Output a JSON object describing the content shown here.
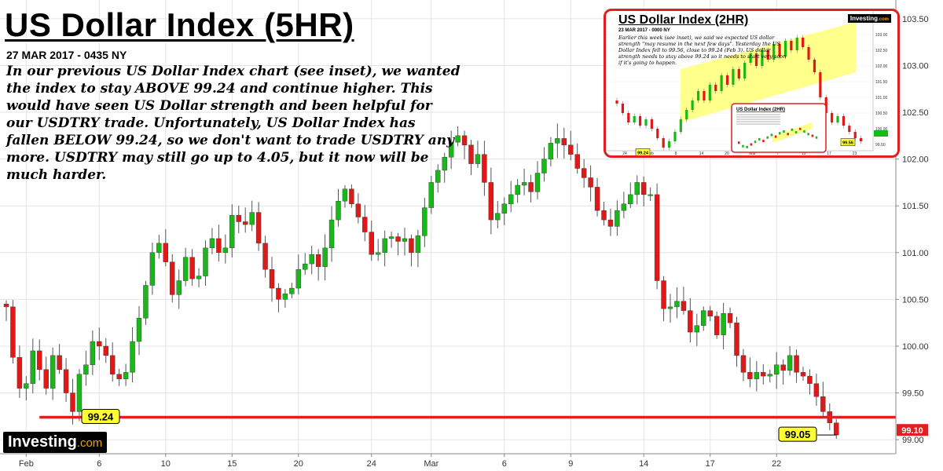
{
  "title": "US Dollar Index (5HR)",
  "date": "27 MAR 2017 - 0435 NY",
  "commentary": "In our previous US Dollar Index chart (see inset), we wanted the index to stay ABOVE 99.24 and continue higher. This would have seen US Dollar strength and been helpful for our USDTRY trade. Unfortunately, US Dollar Index has fallen BELOW 99.24, so we don't want to trade USDTRY any more. USDTRY may still go up to 4.05, but it now will be much harder.",
  "logo": {
    "brand": "Investing",
    "suffix": ".com"
  },
  "colors": {
    "up": "#18b818",
    "down": "#e01818",
    "wick": "#555555",
    "level_line": "#e02020",
    "label_fill": "#ffff33",
    "price_tag": "#e02020"
  },
  "chart_data": {
    "type": "candlestick",
    "title": "US Dollar Index (5HR)",
    "ylim": [
      98.85,
      103.65
    ],
    "y_ticks": [
      "99.00",
      "99.50",
      "100.00",
      "100.50",
      "101.00",
      "101.50",
      "102.00",
      "102.50",
      "103.00",
      "103.50"
    ],
    "x_tick_labels": [
      {
        "label": "Feb",
        "bar": 3
      },
      {
        "label": "6",
        "bar": 14
      },
      {
        "label": "10",
        "bar": 24
      },
      {
        "label": "15",
        "bar": 34
      },
      {
        "label": "20",
        "bar": 44
      },
      {
        "label": "24",
        "bar": 55
      },
      {
        "label": "Mar",
        "bar": 64
      },
      {
        "label": "6",
        "bar": 75
      },
      {
        "label": "9",
        "bar": 85
      },
      {
        "label": "14",
        "bar": 96
      },
      {
        "label": "17",
        "bar": 106
      },
      {
        "label": "22",
        "bar": 116
      }
    ],
    "closes": [
      100.42,
      99.88,
      99.55,
      99.6,
      99.95,
      99.75,
      99.55,
      99.9,
      99.75,
      99.5,
      99.3,
      99.7,
      99.8,
      100.05,
      100.0,
      99.9,
      99.7,
      99.65,
      99.72,
      100.05,
      100.3,
      100.65,
      101.0,
      101.1,
      100.9,
      100.55,
      100.7,
      100.95,
      100.72,
      100.75,
      101.05,
      101.15,
      101.0,
      101.05,
      101.4,
      101.33,
      101.3,
      101.43,
      101.1,
      100.82,
      100.62,
      100.5,
      100.56,
      100.62,
      100.82,
      100.88,
      100.98,
      100.85,
      101.05,
      101.35,
      101.55,
      101.68,
      101.52,
      101.38,
      101.22,
      100.98,
      101.0,
      101.15,
      101.17,
      101.12,
      101.15,
      101.0,
      101.18,
      101.48,
      101.75,
      101.88,
      102.02,
      102.18,
      102.25,
      102.15,
      101.95,
      102.05,
      101.75,
      101.35,
      101.42,
      101.52,
      101.62,
      101.72,
      101.75,
      101.65,
      101.85,
      102.0,
      102.17,
      102.22,
      102.15,
      102.05,
      101.9,
      101.8,
      101.7,
      101.45,
      101.35,
      101.28,
      101.45,
      101.52,
      101.62,
      101.75,
      101.62,
      101.62,
      100.7,
      100.4,
      100.42,
      100.48,
      100.38,
      100.15,
      100.22,
      100.38,
      100.32,
      100.12,
      100.35,
      100.25,
      99.9,
      99.72,
      99.65,
      99.72,
      99.68,
      99.7,
      99.8,
      99.74,
      99.9,
      99.72,
      99.68,
      99.6,
      99.46,
      99.3,
      99.18,
      99.05
    ],
    "levels": [
      {
        "value": 99.24,
        "label": "99.24",
        "from_bar": 5
      },
      {
        "value": 99.05,
        "label": "99.05"
      }
    ],
    "last_price": "99.10"
  },
  "inset": {
    "title": "US Dollar Index (2HR)",
    "date": "23 MAR 2017 - 0000 NY",
    "text": "Earlier this week (see inset), we said we expected US dollar strength \"may resume in the next few days\". Yesterday the US Dollar Index fell to 99.56, close to 99.24 (Feb 3). US dollar strength needs to stay above 99.24 so it needs to start very soon if it's going to happen.",
    "labels": {
      "low": "99.24",
      "recent": "99.56",
      "nested_title": "US Dollar Index (2HR)"
    },
    "logo_brand": "Investing",
    "logo_suffix": ".com",
    "chart_data": {
      "type": "candlestick",
      "ylim": [
        99.3,
        103.6
      ],
      "y_ticks": [
        "99.50",
        "100.00",
        "100.50",
        "101.00",
        "101.50",
        "102.00",
        "102.50",
        "103.00",
        "103.50"
      ],
      "x_tick_labels": [
        "24",
        "Feb",
        "8",
        "14",
        "20",
        "Mar",
        "7",
        "13",
        "17",
        "23"
      ],
      "closes": [
        100.8,
        100.5,
        100.2,
        100.4,
        100.1,
        100.3,
        100.0,
        99.7,
        99.4,
        99.6,
        99.9,
        100.3,
        100.6,
        100.9,
        101.2,
        100.9,
        101.4,
        101.2,
        101.7,
        101.4,
        101.9,
        101.6,
        102.1,
        102.4,
        102.0,
        102.5,
        102.2,
        102.7,
        102.3,
        102.8,
        102.5,
        102.9,
        102.6,
        102.2,
        101.8,
        101.0,
        100.5,
        100.2,
        100.4,
        100.1,
        99.9,
        99.7,
        99.6
      ]
    },
    "channel": {
      "upper": [
        101.9,
        103.4
      ],
      "lower": [
        100.2,
        101.8
      ]
    }
  }
}
